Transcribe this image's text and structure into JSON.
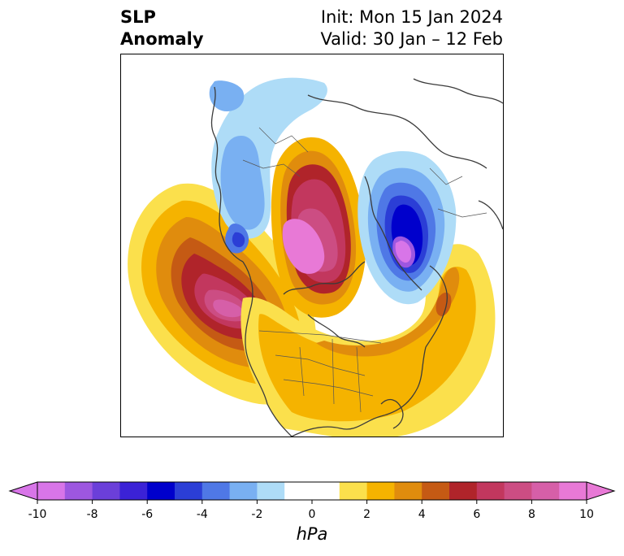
{
  "title": {
    "left_line1": "SLP",
    "left_line2": "Anomaly",
    "init": "Init: Mon 15 Jan 2024",
    "valid": "Valid: 30 Jan – 12 Feb"
  },
  "colorbar": {
    "unit": "hPa",
    "tick_labels": [
      "-10",
      "-8",
      "-6",
      "-4",
      "-2",
      "0",
      "2",
      "4",
      "6",
      "8",
      "10"
    ],
    "colors": [
      "#d875e8",
      "#9d57e0",
      "#6b3fd9",
      "#3b22d6",
      "#0000cc",
      "#2b3ed6",
      "#4f78e6",
      "#79b0f2",
      "#aedcf7",
      "#ffffff",
      "#ffffff",
      "#fbe04c",
      "#f5b300",
      "#e08c0d",
      "#c55a14",
      "#b0242a",
      "#c2375e",
      "#cc4d83",
      "#d65fa8",
      "#e879d6"
    ],
    "under_color": "#d875e8",
    "over_color": "#e879d6"
  }
}
